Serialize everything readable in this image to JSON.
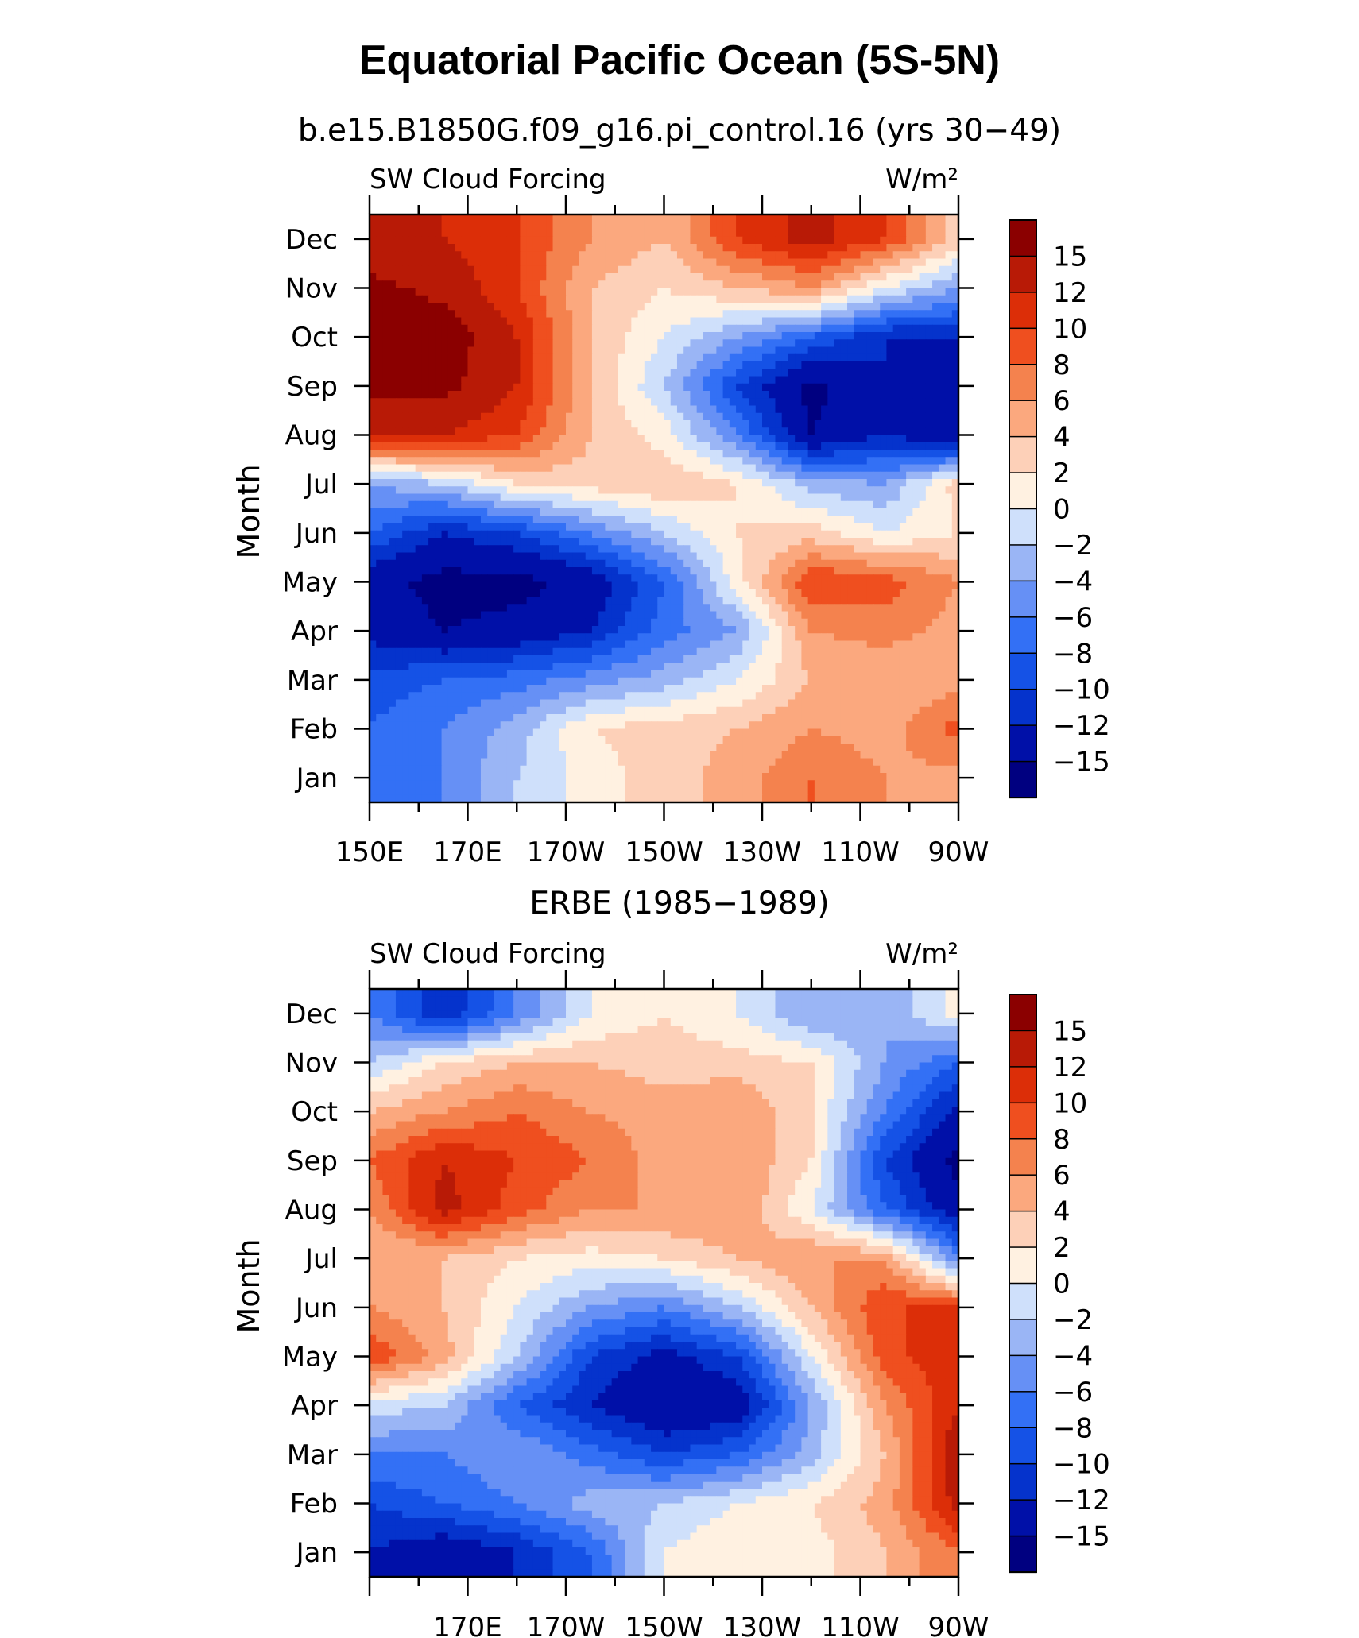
{
  "figure": {
    "title": "Equatorial Pacific Ocean (5S-5N)"
  },
  "chart_data": [
    {
      "type": "heatmap",
      "subtitle": "b.e15.B1850G.f09_g16.pi_control.16 (yrs 30−49)",
      "left_label": "SW Cloud Forcing",
      "right_label": "W/m²",
      "ylabel": "Month",
      "x_tick_labels": [
        "150E",
        "170E",
        "170W",
        "150W",
        "130W",
        "110W",
        "90W"
      ],
      "y_tick_labels": [
        "Jan",
        "Feb",
        "Mar",
        "Apr",
        "May",
        "Jun",
        "Jul",
        "Aug",
        "Sep",
        "Oct",
        "Nov",
        "Dec"
      ],
      "x_range_deg_east": [
        150,
        270
      ],
      "colorbar_labels": [
        "15",
        "12",
        "10",
        "8",
        "6",
        "4",
        "2",
        "0",
        "−2",
        "−4",
        "−6",
        "−8",
        "−10",
        "−12",
        "−15"
      ],
      "x_lon": [
        150,
        165,
        180,
        195,
        210,
        225,
        240,
        255,
        270
      ],
      "z": [
        [
          -7,
          -6,
          -2,
          1,
          3,
          5,
          8,
          6,
          5
        ],
        [
          -8,
          -6,
          -3,
          2,
          3,
          4,
          6,
          5,
          9
        ],
        [
          -9,
          -8,
          -7,
          -5,
          -3,
          0,
          4,
          4,
          5
        ],
        [
          -13,
          -15,
          -14,
          -12,
          -7,
          -4,
          6,
          7,
          5
        ],
        [
          -14,
          -16,
          -16,
          -14,
          -8,
          1,
          10,
          9,
          6
        ],
        [
          -8,
          -12,
          -10,
          -6,
          -2,
          2,
          3,
          0,
          2
        ],
        [
          -4,
          -2,
          2,
          3,
          4,
          2,
          -3,
          -4,
          3
        ],
        [
          12,
          12,
          10,
          4,
          1,
          -6,
          -15,
          -12,
          -15
        ],
        [
          16,
          16,
          12,
          4,
          -2,
          -10,
          -16,
          -12,
          -14
        ],
        [
          17,
          17,
          12,
          4,
          0,
          -4,
          -8,
          -12,
          -12
        ],
        [
          16,
          14,
          10,
          4,
          2,
          4,
          6,
          0,
          -4
        ],
        [
          12,
          12,
          10,
          6,
          4,
          10,
          13,
          10,
          3
        ]
      ]
    },
    {
      "type": "heatmap",
      "subtitle": "ERBE (1985−1989)",
      "left_label": "SW Cloud Forcing",
      "right_label": "W/m²",
      "ylabel": "Month",
      "x_tick_labels": [
        "170E",
        "170W",
        "150W",
        "130W",
        "110W",
        "90W"
      ],
      "y_tick_labels": [
        "Jan",
        "Feb",
        "Mar",
        "Apr",
        "May",
        "Jun",
        "Jul",
        "Aug",
        "Sep",
        "Oct",
        "Nov",
        "Dec"
      ],
      "x_range_deg_east": [
        150,
        270
      ],
      "colorbar_labels": [
        "15",
        "12",
        "10",
        "8",
        "6",
        "4",
        "2",
        "0",
        "−2",
        "−4",
        "−6",
        "−8",
        "−10",
        "−12",
        "−15"
      ],
      "x_lon": [
        150,
        165,
        180,
        195,
        210,
        225,
        240,
        255,
        270
      ],
      "z": [
        [
          -12,
          -14,
          -12,
          -8,
          0,
          2,
          1,
          4,
          8
        ],
        [
          -10,
          -8,
          -6,
          -3,
          -2,
          0,
          2,
          5,
          13
        ],
        [
          -6,
          -6,
          -4,
          -7,
          -10,
          -8,
          -3,
          4,
          14
        ],
        [
          -1,
          -2,
          -8,
          -12,
          -15,
          -14,
          -4,
          6,
          12
        ],
        [
          10,
          5,
          -2,
          -10,
          -13,
          -10,
          0,
          9,
          12
        ],
        [
          6,
          4,
          0,
          -4,
          -6,
          -2,
          4,
          10,
          10
        ],
        [
          4,
          4,
          2,
          1,
          2,
          4,
          6,
          6,
          -6
        ],
        [
          6,
          13,
          9,
          6,
          6,
          6,
          0,
          -8,
          -14
        ],
        [
          8,
          12,
          10,
          8,
          5,
          6,
          2,
          -10,
          -16
        ],
        [
          4,
          6,
          8,
          6,
          5,
          6,
          2,
          -6,
          -13
        ],
        [
          -2,
          2,
          4,
          4,
          3,
          3,
          2,
          -4,
          -8
        ],
        [
          -6,
          -12,
          -6,
          0,
          2,
          0,
          -4,
          -4,
          1
        ]
      ]
    }
  ],
  "colors": {
    "scale": [
      "#000080",
      "#0010a8",
      "#0533cc",
      "#1552e6",
      "#3370f5",
      "#6690f5",
      "#9ab5f5",
      "#cfe0fb",
      "#fff1e1",
      "#fdd0b8",
      "#fba87e",
      "#f4824e",
      "#ef4f1f",
      "#dc2e08",
      "#b81a06",
      "#8b0000"
    ]
  }
}
